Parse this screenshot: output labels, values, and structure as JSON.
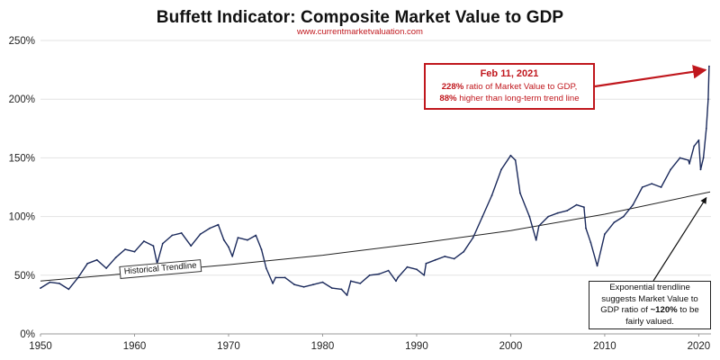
{
  "title": "Buffett Indicator: Composite Market Value to GDP",
  "subtitle": "www.currentmarketvaluation.com",
  "callout_top": {
    "date": "Feb 11, 2021",
    "line1_bold": "228%",
    "line1_rest": " ratio of Market Value to GDP,",
    "line2_bold": "88%",
    "line2_rest": " higher than long-term trend line"
  },
  "callout_bottom": {
    "line1": "Exponential trendline",
    "line2": "suggests Market Value to",
    "line3_pre": "GDP ratio of ",
    "line3_bold": "~120%",
    "line3_post": " to be",
    "line4": "fairly valued."
  },
  "trendline_label": "Historical Trendline",
  "colors": {
    "series": "#1b2a5c",
    "accent": "#c0171d",
    "grid": "#e3e3e3",
    "trend": "#222222"
  },
  "chart_data": {
    "type": "line",
    "title": "Buffett Indicator: Composite Market Value to GDP",
    "xlabel": "",
    "ylabel": "",
    "xlim": [
      1950,
      2021.3
    ],
    "ylim": [
      0,
      250
    ],
    "x_ticks": [
      1950,
      1960,
      1970,
      1980,
      1990,
      2000,
      2010,
      2020
    ],
    "y_ticks": [
      0,
      50,
      100,
      150,
      200,
      250
    ],
    "y_tick_labels": [
      "0%",
      "50%",
      "100%",
      "150%",
      "200%",
      "250%"
    ],
    "grid": "horizontal",
    "series": [
      {
        "name": "",
        "x": [
          1950,
          1951,
          1952,
          1953,
          1954,
          1955,
          1956,
          1957,
          1958,
          1959,
          1960,
          1961,
          1962,
          1962.4,
          1963,
          1964,
          1965,
          1966,
          1967,
          1968,
          1968.9,
          1969.5,
          1970,
          1970.4,
          1971,
          1972,
          1972.9,
          1973.5,
          1974,
          1974.7,
          1975,
          1976,
          1977,
          1978,
          1979,
          1980,
          1981,
          1982,
          1982.6,
          1983,
          1984,
          1985,
          1986,
          1987,
          1987.8,
          1988,
          1989,
          1990,
          1990.8,
          1991,
          1992,
          1993,
          1994,
          1995,
          1996,
          1997,
          1998,
          1999,
          2000,
          2000.5,
          2001,
          2002,
          2002.7,
          2003,
          2004,
          2005,
          2006,
          2007,
          2007.8,
          2008,
          2008.5,
          2009.2,
          2010,
          2011,
          2012,
          2013,
          2014,
          2015,
          2016,
          2017,
          2018,
          2018.9,
          2019,
          2019.5,
          2020,
          2020.2,
          2020.5,
          2020.8,
          2021,
          2021.1
        ],
        "y": [
          39,
          44,
          43,
          38,
          48,
          60,
          63,
          56,
          65,
          72,
          70,
          79,
          75,
          60,
          77,
          84,
          86,
          75,
          85,
          90,
          93,
          80,
          74,
          66,
          82,
          80,
          84,
          72,
          56,
          43,
          48,
          48,
          42,
          40,
          42,
          44,
          39,
          38,
          33,
          45,
          43,
          50,
          51,
          54,
          45,
          48,
          57,
          55,
          50,
          60,
          63,
          66,
          64,
          70,
          82,
          100,
          118,
          140,
          152,
          148,
          120,
          100,
          80,
          92,
          100,
          103,
          105,
          110,
          108,
          90,
          78,
          58,
          85,
          95,
          100,
          110,
          125,
          128,
          125,
          140,
          150,
          148,
          145,
          160,
          165,
          140,
          150,
          175,
          200,
          228
        ]
      }
    ],
    "trendline": {
      "name": "Historical Trendline",
      "x": [
        1950,
        1960,
        1970,
        1980,
        1990,
        2000,
        2010,
        2021.2
      ],
      "y": [
        45,
        52,
        59,
        67,
        77,
        88,
        102,
        121
      ]
    },
    "annotations": [
      {
        "text": "Feb 11, 2021 228% ratio of Market Value to GDP, 88% higher than long-term trend line",
        "x": 2021.1,
        "y": 228
      },
      {
        "text": "Exponential trendline suggests Market Value to GDP ratio of ~120% to be fairly valued.",
        "x": 2021.0,
        "y": 120
      }
    ]
  }
}
